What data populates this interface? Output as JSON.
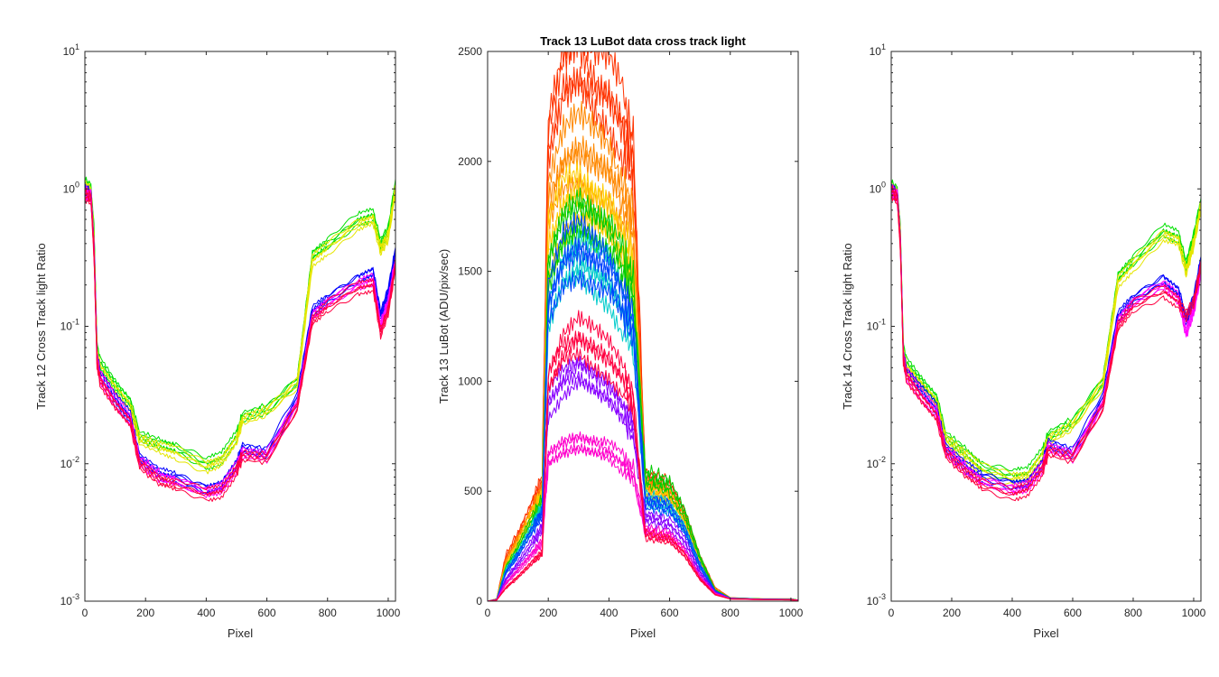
{
  "chart_data": [
    {
      "type": "line",
      "title": "",
      "xlabel": "Pixel",
      "ylabel": "Track 12  Cross Track light Ratio",
      "yscale": "log",
      "xlim": [
        0,
        1024
      ],
      "ylim": [
        0.001,
        10
      ],
      "xticks": [
        "0",
        "200",
        "400",
        "600",
        "800",
        "1000"
      ],
      "yticks": [
        "10-3",
        "10-2",
        "10-1",
        "100",
        "101"
      ],
      "series_colors": [
        "#00e000",
        "#e6e600",
        "#0000ff",
        "#ff00ff",
        "#ff0040"
      ],
      "x": [
        0,
        20,
        30,
        40,
        50,
        100,
        150,
        180,
        250,
        300,
        400,
        450,
        500,
        520,
        600,
        700,
        750,
        800,
        900,
        950,
        975,
        1000,
        1024
      ],
      "series": [
        {
          "values": [
            1.1,
            1.0,
            0.5,
            0.07,
            0.055,
            0.038,
            0.028,
            0.016,
            0.014,
            0.013,
            0.01,
            0.011,
            0.016,
            0.022,
            0.025,
            0.04,
            0.33,
            0.4,
            0.6,
            0.65,
            0.4,
            0.5,
            1.1
          ]
        },
        {
          "values": [
            1.05,
            0.95,
            0.45,
            0.065,
            0.05,
            0.035,
            0.026,
            0.015,
            0.013,
            0.012,
            0.0095,
            0.0105,
            0.015,
            0.021,
            0.024,
            0.038,
            0.3,
            0.37,
            0.55,
            0.6,
            0.36,
            0.45,
            1.0
          ]
        },
        {
          "values": [
            1.0,
            0.9,
            0.4,
            0.06,
            0.045,
            0.03,
            0.022,
            0.011,
            0.0085,
            0.008,
            0.0065,
            0.007,
            0.01,
            0.013,
            0.012,
            0.03,
            0.13,
            0.16,
            0.22,
            0.25,
            0.12,
            0.18,
            0.35
          ]
        },
        {
          "values": [
            0.95,
            0.88,
            0.38,
            0.058,
            0.043,
            0.029,
            0.021,
            0.0105,
            0.008,
            0.0075,
            0.0062,
            0.0066,
            0.0095,
            0.012,
            0.0115,
            0.028,
            0.12,
            0.15,
            0.2,
            0.22,
            0.1,
            0.15,
            0.3
          ]
        },
        {
          "values": [
            0.9,
            0.85,
            0.35,
            0.055,
            0.04,
            0.027,
            0.02,
            0.01,
            0.0075,
            0.007,
            0.006,
            0.0063,
            0.009,
            0.0115,
            0.011,
            0.026,
            0.11,
            0.14,
            0.19,
            0.2,
            0.09,
            0.13,
            0.28
          ]
        }
      ]
    },
    {
      "type": "line",
      "title": "Track 13 LuBot  data cross track light",
      "xlabel": "Pixel",
      "ylabel": "Track 13 LuBot (ADU/pix/sec)",
      "yscale": "linear",
      "xlim": [
        0,
        1024
      ],
      "ylim": [
        0,
        2500
      ],
      "xticks": [
        "0",
        "200",
        "400",
        "600",
        "800",
        "1000"
      ],
      "yticks": [
        "0",
        "500",
        "1000",
        "1500",
        "2000",
        "2500"
      ],
      "series_colors": [
        "#ff3300",
        "#ff8800",
        "#ffcc00",
        "#00cc00",
        "#00cccc",
        "#0044ff",
        "#8800ff",
        "#ff00cc",
        "#ff0040"
      ],
      "x": [
        0,
        30,
        60,
        100,
        150,
        180,
        200,
        250,
        300,
        350,
        400,
        450,
        480,
        520,
        560,
        600,
        650,
        700,
        750,
        800,
        900,
        1000,
        1024
      ],
      "series": [
        {
          "values": [
            0,
            10,
            200,
            300,
            450,
            550,
            2100,
            2400,
            2450,
            2350,
            2300,
            2150,
            2000,
            550,
            540,
            520,
            400,
            200,
            60,
            15,
            10,
            10,
            5
          ]
        },
        {
          "values": [
            0,
            10,
            180,
            280,
            420,
            500,
            1800,
            2000,
            2050,
            2000,
            1950,
            1800,
            1700,
            520,
            510,
            490,
            380,
            190,
            55,
            15,
            10,
            10,
            5
          ]
        },
        {
          "values": [
            0,
            10,
            160,
            260,
            400,
            480,
            1600,
            1800,
            1850,
            1800,
            1750,
            1600,
            1500,
            500,
            490,
            470,
            360,
            180,
            50,
            14,
            10,
            9,
            5
          ]
        },
        {
          "values": [
            0,
            8,
            150,
            240,
            380,
            450,
            1500,
            1700,
            1750,
            1700,
            1650,
            1500,
            1400,
            560,
            550,
            520,
            400,
            200,
            50,
            14,
            10,
            9,
            5
          ]
        },
        {
          "values": [
            0,
            8,
            140,
            220,
            350,
            420,
            1300,
            1500,
            1550,
            1500,
            1450,
            1300,
            1200,
            460,
            450,
            430,
            330,
            160,
            45,
            13,
            9,
            8,
            4
          ]
        },
        {
          "values": [
            0,
            8,
            130,
            210,
            330,
            400,
            1350,
            1550,
            1600,
            1550,
            1500,
            1350,
            1250,
            450,
            440,
            420,
            320,
            160,
            45,
            13,
            9,
            8,
            4
          ]
        },
        {
          "values": [
            0,
            6,
            100,
            170,
            270,
            330,
            900,
            1000,
            1050,
            1000,
            950,
            850,
            780,
            380,
            370,
            350,
            270,
            130,
            40,
            12,
            8,
            7,
            4
          ]
        },
        {
          "values": [
            0,
            6,
            80,
            140,
            220,
            270,
            650,
            700,
            720,
            700,
            680,
            620,
            580,
            320,
            310,
            300,
            230,
            110,
            35,
            11,
            8,
            7,
            4
          ]
        },
        {
          "values": [
            0,
            5,
            60,
            110,
            180,
            220,
            1000,
            1150,
            1200,
            1150,
            1100,
            1000,
            900,
            300,
            290,
            280,
            210,
            100,
            30,
            10,
            7,
            6,
            3
          ]
        }
      ]
    },
    {
      "type": "line",
      "title": "",
      "xlabel": "Pixel",
      "ylabel": "Track 14  Cross Track light Ratio",
      "yscale": "log",
      "xlim": [
        0,
        1024
      ],
      "ylim": [
        0.001,
        10
      ],
      "xticks": [
        "0",
        "200",
        "400",
        "600",
        "800",
        "1000"
      ],
      "yticks": [
        "10-3",
        "10-2",
        "10-1",
        "100",
        "101"
      ],
      "series_colors": [
        "#00e000",
        "#e6e600",
        "#0000ff",
        "#ff00ff",
        "#ff0040"
      ],
      "x": [
        0,
        20,
        30,
        40,
        50,
        100,
        150,
        180,
        250,
        300,
        400,
        450,
        500,
        520,
        600,
        700,
        750,
        800,
        900,
        950,
        975,
        1000,
        1024
      ],
      "series": [
        {
          "values": [
            1.05,
            0.95,
            0.5,
            0.07,
            0.055,
            0.04,
            0.03,
            0.016,
            0.012,
            0.0095,
            0.0082,
            0.0085,
            0.012,
            0.016,
            0.02,
            0.04,
            0.23,
            0.3,
            0.5,
            0.45,
            0.28,
            0.45,
            0.8
          ]
        },
        {
          "values": [
            1.0,
            0.92,
            0.48,
            0.066,
            0.05,
            0.037,
            0.028,
            0.015,
            0.0112,
            0.009,
            0.0078,
            0.008,
            0.0115,
            0.015,
            0.019,
            0.038,
            0.21,
            0.28,
            0.46,
            0.42,
            0.25,
            0.4,
            0.75
          ]
        },
        {
          "values": [
            1.0,
            0.9,
            0.45,
            0.062,
            0.047,
            0.034,
            0.025,
            0.013,
            0.0095,
            0.008,
            0.007,
            0.0072,
            0.01,
            0.014,
            0.012,
            0.03,
            0.12,
            0.16,
            0.22,
            0.18,
            0.11,
            0.16,
            0.3
          ]
        },
        {
          "values": [
            0.98,
            0.88,
            0.42,
            0.06,
            0.045,
            0.032,
            0.024,
            0.0125,
            0.009,
            0.0075,
            0.0065,
            0.0068,
            0.0095,
            0.0132,
            0.0115,
            0.028,
            0.11,
            0.15,
            0.2,
            0.16,
            0.09,
            0.13,
            0.25
          ]
        },
        {
          "values": [
            0.95,
            0.85,
            0.4,
            0.058,
            0.043,
            0.03,
            0.022,
            0.012,
            0.0085,
            0.007,
            0.006,
            0.0065,
            0.009,
            0.0125,
            0.011,
            0.026,
            0.1,
            0.14,
            0.18,
            0.15,
            0.12,
            0.15,
            0.28
          ]
        }
      ]
    }
  ]
}
